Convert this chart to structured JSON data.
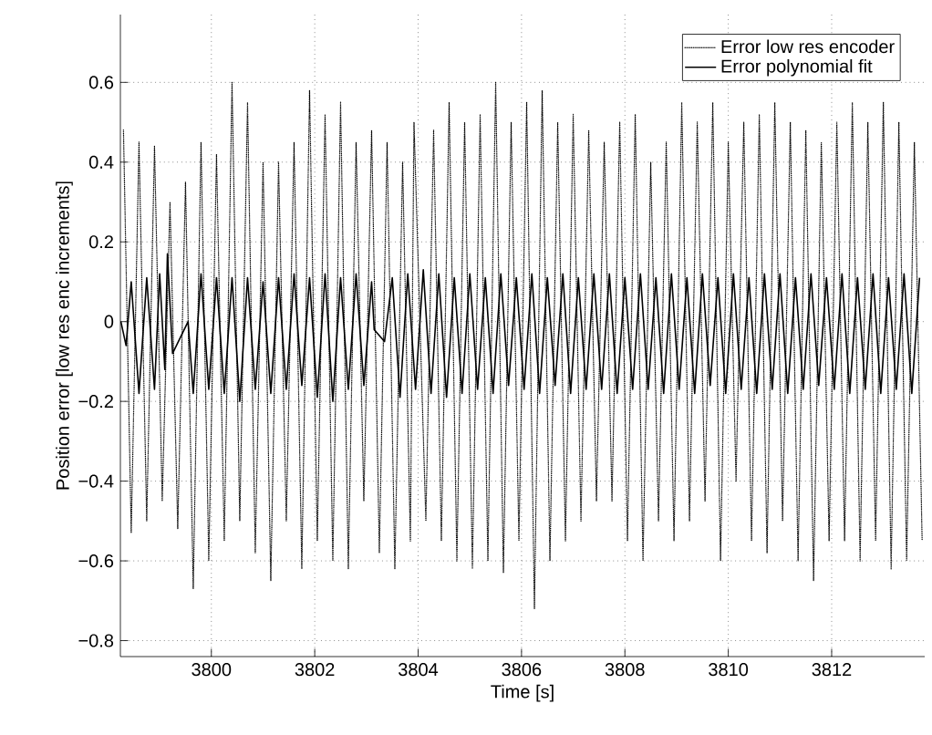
{
  "chart_data": {
    "type": "line",
    "xlabel": "Time [s]",
    "ylabel": "Position error [low res enc increments]",
    "xlim": [
      3798.24,
      3813.8
    ],
    "ylim": [
      -0.84,
      0.77
    ],
    "xticks": [
      3800,
      3802,
      3804,
      3806,
      3808,
      3810,
      3812
    ],
    "yticks": [
      {
        "value": -0.8,
        "label": "−0.8"
      },
      {
        "value": -0.6,
        "label": "−0.6"
      },
      {
        "value": -0.4,
        "label": "−0.4"
      },
      {
        "value": -0.2,
        "label": "−0.2"
      },
      0,
      0.2,
      0.4,
      0.6
    ],
    "grid": true,
    "legend": "top right",
    "series": [
      {
        "name": "Error low res encoder",
        "color": "#000000",
        "line_style": "dotted",
        "x": [
          3798.3,
          3798.45,
          3798.6,
          3798.75,
          3798.9,
          3799.05,
          3799.2,
          3799.35,
          3799.5,
          3799.65,
          3799.8,
          3799.95,
          3800.1,
          3800.25,
          3800.4,
          3800.55,
          3800.7,
          3800.85,
          3801.0,
          3801.15,
          3801.3,
          3801.45,
          3801.6,
          3801.75,
          3801.9,
          3802.05,
          3802.2,
          3802.35,
          3802.5,
          3802.65,
          3802.8,
          3802.95,
          3803.1,
          3803.25,
          3803.4,
          3803.55,
          3803.7,
          3803.85,
          3803.92,
          3804.15,
          3804.3,
          3804.45,
          3804.6,
          3804.75,
          3804.9,
          3805.05,
          3805.2,
          3805.35,
          3805.5,
          3805.65,
          3805.8,
          3805.95,
          3806.1,
          3806.25,
          3806.4,
          3806.55,
          3806.7,
          3806.85,
          3807.0,
          3807.15,
          3807.3,
          3807.45,
          3807.6,
          3807.75,
          3807.9,
          3808.05,
          3808.2,
          3808.35,
          3808.5,
          3808.65,
          3808.8,
          3808.95,
          3809.1,
          3809.25,
          3809.4,
          3809.55,
          3809.7,
          3809.85,
          3810.0,
          3810.15,
          3810.3,
          3810.45,
          3810.6,
          3810.75,
          3810.9,
          3811.05,
          3811.2,
          3811.35,
          3811.5,
          3811.65,
          3811.8,
          3811.95,
          3812.1,
          3812.25,
          3812.4,
          3812.55,
          3812.7,
          3812.85,
          3813.0,
          3813.15,
          3813.3,
          3813.45,
          3813.6,
          3813.75
        ],
        "values": [
          0.48,
          -0.53,
          0.45,
          -0.5,
          0.44,
          -0.45,
          0.3,
          -0.52,
          0.35,
          -0.67,
          0.45,
          -0.6,
          0.42,
          -0.55,
          0.6,
          -0.5,
          0.55,
          -0.58,
          0.4,
          -0.65,
          0.4,
          -0.5,
          0.45,
          -0.62,
          0.58,
          -0.55,
          0.52,
          -0.6,
          0.55,
          -0.62,
          0.45,
          -0.45,
          0.48,
          -0.58,
          0.45,
          -0.62,
          0.4,
          -0.55,
          0.5,
          -0.5,
          0.48,
          -0.55,
          0.55,
          -0.6,
          0.5,
          -0.62,
          0.52,
          -0.6,
          0.6,
          -0.63,
          0.5,
          -0.55,
          0.55,
          -0.72,
          0.58,
          -0.6,
          0.5,
          -0.55,
          0.52,
          -0.5,
          0.48,
          -0.45,
          0.45,
          -0.45,
          0.5,
          -0.55,
          0.52,
          -0.6,
          0.4,
          -0.5,
          0.45,
          -0.55,
          0.55,
          -0.5,
          0.5,
          -0.45,
          0.55,
          -0.6,
          0.45,
          -0.4,
          0.5,
          -0.55,
          0.52,
          -0.58,
          0.55,
          -0.5,
          0.5,
          -0.6,
          0.48,
          -0.65,
          0.45,
          -0.55,
          0.5,
          -0.55,
          0.55,
          -0.6,
          0.5,
          -0.55,
          0.55,
          -0.62,
          0.5,
          -0.6,
          0.45,
          -0.55
        ]
      },
      {
        "name": "Error polynomial fit",
        "color": "#000000",
        "line_style": "solid",
        "x": [
          3798.25,
          3798.35,
          3798.45,
          3798.6,
          3798.75,
          3798.9,
          3799.0,
          3799.1,
          3799.15,
          3799.25,
          3799.55,
          3799.65,
          3799.8,
          3799.95,
          3800.1,
          3800.25,
          3800.4,
          3800.55,
          3800.7,
          3800.85,
          3801.0,
          3801.15,
          3801.3,
          3801.45,
          3801.6,
          3801.75,
          3801.9,
          3802.05,
          3802.2,
          3802.35,
          3802.5,
          3802.65,
          3802.8,
          3802.95,
          3803.1,
          3803.15,
          3803.35,
          3803.5,
          3803.65,
          3803.8,
          3803.95,
          3804.1,
          3804.25,
          3804.4,
          3804.55,
          3804.7,
          3804.85,
          3805.0,
          3805.15,
          3805.3,
          3805.45,
          3805.6,
          3805.75,
          3805.9,
          3806.05,
          3806.2,
          3806.35,
          3806.5,
          3806.65,
          3806.8,
          3806.95,
          3807.1,
          3807.25,
          3807.4,
          3807.55,
          3807.7,
          3807.85,
          3808.0,
          3808.15,
          3808.3,
          3808.45,
          3808.6,
          3808.75,
          3808.9,
          3809.05,
          3809.2,
          3809.35,
          3809.5,
          3809.65,
          3809.8,
          3809.95,
          3810.1,
          3810.25,
          3810.4,
          3810.55,
          3810.7,
          3810.85,
          3811.0,
          3811.15,
          3811.3,
          3811.45,
          3811.6,
          3811.75,
          3811.9,
          3812.05,
          3812.2,
          3812.35,
          3812.5,
          3812.65,
          3812.8,
          3812.95,
          3813.1,
          3813.25,
          3813.4,
          3813.55,
          3813.7
        ],
        "values": [
          0.0,
          -0.06,
          0.1,
          -0.18,
          0.11,
          -0.17,
          0.12,
          -0.12,
          0.17,
          -0.08,
          0.0,
          -0.18,
          0.12,
          -0.17,
          0.11,
          -0.18,
          0.11,
          -0.2,
          0.11,
          -0.17,
          0.1,
          -0.18,
          0.11,
          -0.17,
          0.12,
          -0.16,
          0.11,
          -0.19,
          0.12,
          -0.2,
          0.11,
          -0.17,
          0.12,
          -0.16,
          0.1,
          -0.02,
          -0.05,
          0.11,
          -0.19,
          0.12,
          -0.17,
          0.13,
          -0.18,
          0.12,
          -0.19,
          0.11,
          -0.18,
          0.12,
          -0.17,
          0.11,
          -0.18,
          0.12,
          -0.16,
          0.11,
          -0.17,
          0.12,
          -0.18,
          0.11,
          -0.16,
          0.12,
          -0.18,
          0.11,
          -0.17,
          0.12,
          -0.17,
          0.12,
          -0.18,
          0.11,
          -0.17,
          0.12,
          -0.17,
          0.11,
          -0.18,
          0.12,
          -0.17,
          0.11,
          -0.18,
          0.12,
          -0.16,
          0.11,
          -0.18,
          0.12,
          -0.17,
          0.11,
          -0.18,
          0.12,
          -0.17,
          0.12,
          -0.18,
          0.11,
          -0.17,
          0.12,
          -0.16,
          0.11,
          -0.17,
          0.12,
          -0.18,
          0.11,
          -0.17,
          0.12,
          -0.18,
          0.11,
          -0.17,
          0.12,
          -0.18,
          0.11
        ]
      }
    ]
  }
}
